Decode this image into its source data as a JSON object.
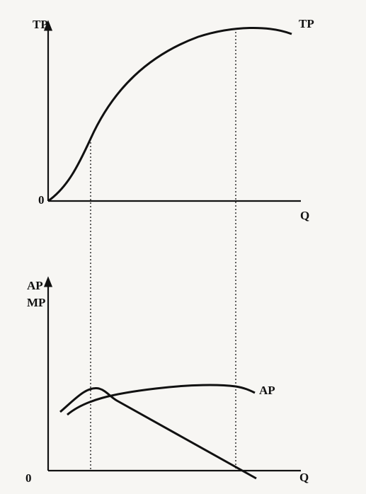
{
  "top": {
    "y_axis_label": "TP",
    "curve_label": "TP",
    "origin": "0",
    "x_axis_label": "Q"
  },
  "bottom": {
    "y_axis_label_1": "AP",
    "y_axis_label_2": "MP",
    "curve_label": "AP",
    "origin": "0",
    "x_axis_label": "Q"
  }
}
